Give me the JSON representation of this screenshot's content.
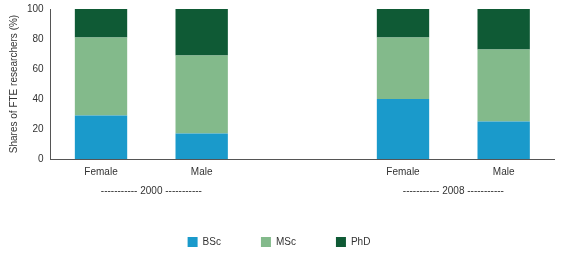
{
  "chart_data": {
    "type": "bar",
    "stacked": true,
    "y_label": "Shares of FTE researchers (%)",
    "categories": [
      "Female",
      "Male",
      null,
      "Female",
      "Male"
    ],
    "category_groups": [
      {
        "label": "----------- 2000 -----------",
        "from": 0,
        "to": 1
      },
      {
        "label": "----------- 2008 -----------",
        "from": 3,
        "to": 4
      }
    ],
    "series": [
      {
        "name": "BSc",
        "color": "#1a9acb",
        "values": [
          29,
          17,
          null,
          40,
          25
        ]
      },
      {
        "name": "MSc",
        "color": "#83ba8b",
        "values": [
          52,
          52,
          null,
          41,
          48
        ]
      },
      {
        "name": "PhD",
        "color": "#0f5a35",
        "values": [
          19,
          31,
          null,
          19,
          27
        ]
      }
    ],
    "ylim": [
      0,
      100
    ],
    "yticks": [
      0,
      20,
      40,
      60,
      80,
      100
    ],
    "grid": false,
    "legend": "bottom"
  }
}
